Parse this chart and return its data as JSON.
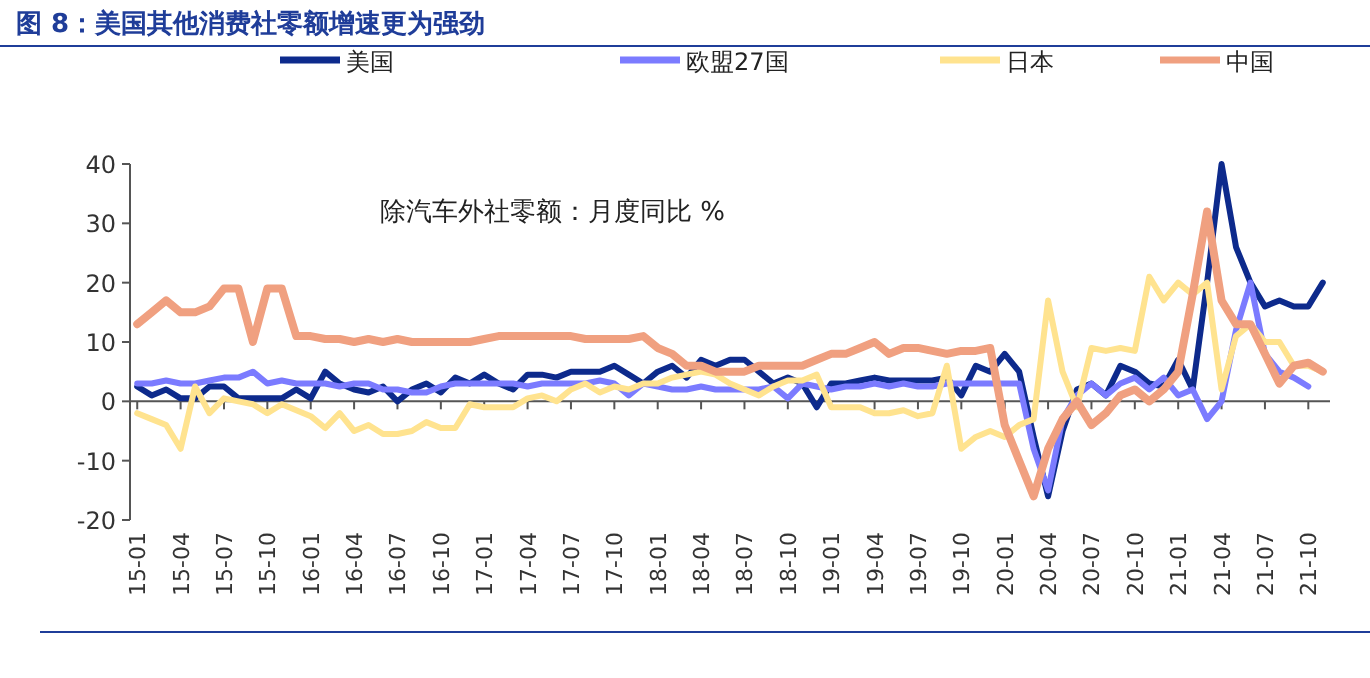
{
  "chart_data": {
    "type": "line",
    "title": "图 8：美国其他消费社零额增速更为强劲",
    "annotations": [
      "除汽车外社零额：月度同比 %"
    ],
    "categories": [
      "15-01",
      null,
      null,
      "15-04",
      null,
      null,
      "15-07",
      null,
      null,
      "15-10",
      null,
      null,
      "16-01",
      null,
      null,
      "16-04",
      null,
      null,
      "16-07",
      null,
      null,
      "16-10",
      null,
      null,
      "17-01",
      null,
      null,
      "17-04",
      null,
      null,
      "17-07",
      null,
      null,
      "17-10",
      null,
      null,
      "18-01",
      null,
      null,
      "18-04",
      null,
      null,
      "18-07",
      null,
      null,
      "18-10",
      null,
      null,
      "19-01",
      null,
      null,
      "19-04",
      null,
      null,
      "19-07",
      null,
      null,
      "19-10",
      null,
      null,
      "20-01",
      null,
      null,
      "20-04",
      null,
      null,
      "20-07",
      null,
      null,
      "20-10",
      null,
      null,
      "21-01",
      null,
      null,
      "21-04",
      null,
      null,
      "21-07",
      null,
      null,
      "21-10",
      null
    ],
    "ylim": [
      -20,
      40
    ],
    "yticks": [
      -20,
      -10,
      0,
      10,
      20,
      30,
      40
    ],
    "legend": "top",
    "series": [
      {
        "name": "美国",
        "color": "#0d2a8c",
        "values": [
          2.5,
          1,
          2,
          0.5,
          0.5,
          2.5,
          2.5,
          0.5,
          0.5,
          0.5,
          0.5,
          2,
          0.5,
          5,
          3,
          2,
          1.5,
          2.5,
          0,
          2,
          3,
          1.5,
          4,
          3,
          4.5,
          3,
          2,
          4.5,
          4.5,
          4,
          5,
          5,
          5,
          6,
          4.5,
          3,
          5,
          6,
          4,
          7,
          6,
          7,
          7,
          5,
          3,
          4,
          3,
          -1,
          3,
          3,
          3.5,
          4,
          3.5,
          3.5,
          3.5,
          3.5,
          4,
          1,
          6,
          5,
          8,
          5,
          -6,
          -16,
          -5,
          2,
          3,
          1,
          6,
          5,
          3,
          2.5,
          7,
          2,
          20,
          40,
          26,
          20,
          16,
          17,
          16,
          16,
          20
        ]
      },
      {
        "name": "欧盟27国",
        "color": "#7b7bff",
        "values": [
          3,
          3,
          3.5,
          3,
          3,
          3.5,
          4,
          4,
          5,
          3,
          3.5,
          3,
          3,
          3,
          2.5,
          3,
          3,
          2,
          2,
          1.5,
          1.5,
          2.5,
          3,
          3,
          3,
          3,
          3,
          2.5,
          3,
          3,
          3,
          3,
          3.5,
          3,
          1,
          3,
          2.5,
          2,
          2,
          2.5,
          2,
          2,
          2,
          2,
          2.5,
          0.5,
          3,
          2.5,
          2,
          2.5,
          2.5,
          3,
          2.5,
          3,
          2.5,
          2.5,
          3,
          3,
          3,
          3,
          3,
          3,
          -8,
          -15,
          -3,
          1,
          3,
          1,
          3,
          4,
          2,
          4,
          1,
          2,
          -3,
          0,
          12,
          20,
          8,
          5,
          4,
          2.5,
          null
        ]
      },
      {
        "name": "日本",
        "color": "#ffe38f",
        "values": [
          -2,
          -3,
          -4,
          -8,
          2.5,
          -2,
          0.5,
          0,
          -0.5,
          -2,
          -0.5,
          -1.5,
          -2.5,
          -4.5,
          -2,
          -5,
          -4,
          -5.5,
          -5.5,
          -5,
          -3.5,
          -4.5,
          -4.5,
          -0.5,
          -1,
          -1,
          -1,
          0.5,
          1,
          0,
          2,
          3,
          1.5,
          2.5,
          2,
          3,
          3,
          4,
          4.5,
          5,
          4.5,
          3,
          2,
          1,
          2.5,
          3.5,
          3.5,
          4.5,
          -1,
          -1,
          -1,
          -2,
          -2,
          -1.5,
          -2.5,
          -2,
          6,
          -8,
          -6,
          -5,
          -6,
          -4,
          -3,
          17,
          5,
          -1,
          9,
          8.5,
          9,
          8.5,
          21,
          17,
          20,
          18,
          20,
          2,
          11,
          13,
          10,
          10,
          6,
          6,
          5
        ]
      },
      {
        "name": "中国",
        "color": "#f0a080",
        "values": [
          13,
          15,
          17,
          15,
          15,
          16,
          19,
          19,
          10,
          19,
          19,
          11,
          11,
          10.5,
          10.5,
          10,
          10.5,
          10,
          10.5,
          10,
          10,
          10,
          10,
          10,
          10.5,
          11,
          11,
          11,
          11,
          11,
          11,
          10.5,
          10.5,
          10.5,
          10.5,
          11,
          9,
          8,
          6,
          6,
          5,
          5,
          5,
          6,
          6,
          6,
          6,
          7,
          8,
          8,
          9,
          10,
          8,
          9,
          9,
          8.5,
          8,
          8.5,
          8.5,
          9,
          -4,
          -10,
          -16,
          -8,
          -3,
          0,
          -4,
          -2,
          1,
          2,
          0,
          2,
          5,
          18,
          32,
          17,
          13,
          13,
          8,
          3,
          6,
          6.5,
          5
        ]
      }
    ]
  }
}
